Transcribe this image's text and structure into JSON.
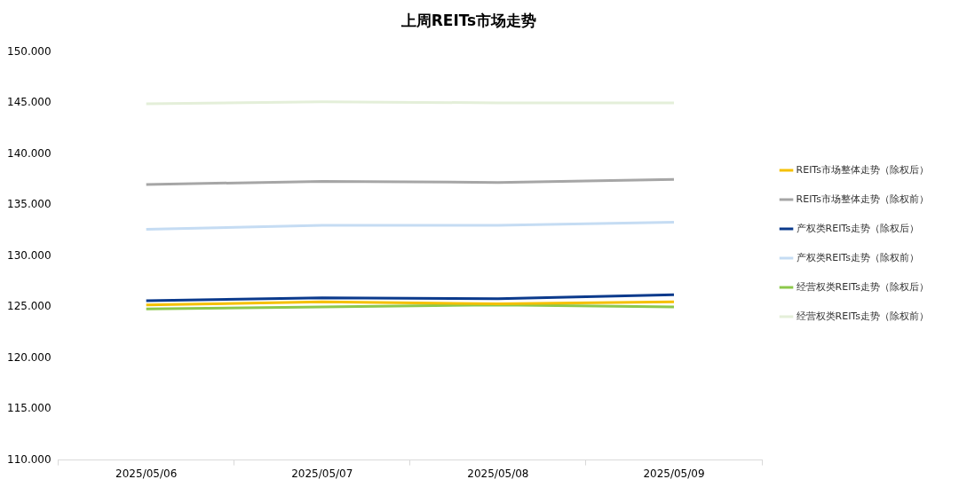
{
  "chart_data": {
    "type": "line",
    "title": "上周REITs市场走势",
    "categories": [
      "2025/05/06",
      "2025/05/07",
      "2025/05/08",
      "2025/05/09"
    ],
    "series": [
      {
        "name": "REITs市场整体走势（除权后）",
        "color": "#f5c000",
        "values": [
          125.2,
          125.5,
          125.3,
          125.5
        ]
      },
      {
        "name": "REITs市场整体走势（除权前）",
        "color": "#a6a6a6",
        "values": [
          137.0,
          137.3,
          137.2,
          137.5
        ]
      },
      {
        "name": "产权类REITs走势（除权后）",
        "color": "#0b3a8c",
        "values": [
          125.6,
          125.9,
          125.8,
          126.2
        ]
      },
      {
        "name": "产权类REITs走势（除权前）",
        "color": "#c5dcf3",
        "values": [
          132.6,
          133.0,
          133.0,
          133.3
        ]
      },
      {
        "name": "经营权类REITs走势（除权后）",
        "color": "#8cc84b",
        "values": [
          124.8,
          125.0,
          125.2,
          125.0
        ]
      },
      {
        "name": "经营权类REITs走势（除权前）",
        "color": "#e4efd9",
        "values": [
          144.9,
          145.1,
          145.0,
          145.0
        ]
      }
    ],
    "ylim": [
      110,
      150
    ],
    "yticks": [
      {
        "value": 110,
        "label": "110.000"
      },
      {
        "value": 115,
        "label": "115.000"
      },
      {
        "value": 120,
        "label": "120.000"
      },
      {
        "value": 125,
        "label": "125.000"
      },
      {
        "value": 130,
        "label": "130.000"
      },
      {
        "value": 135,
        "label": "135.000"
      },
      {
        "value": 140,
        "label": "140.000"
      },
      {
        "value": 145,
        "label": "145.000"
      },
      {
        "value": 150,
        "label": "150.000"
      }
    ],
    "grid": false,
    "legend": "right",
    "marker": "none",
    "line_style": "solid"
  }
}
